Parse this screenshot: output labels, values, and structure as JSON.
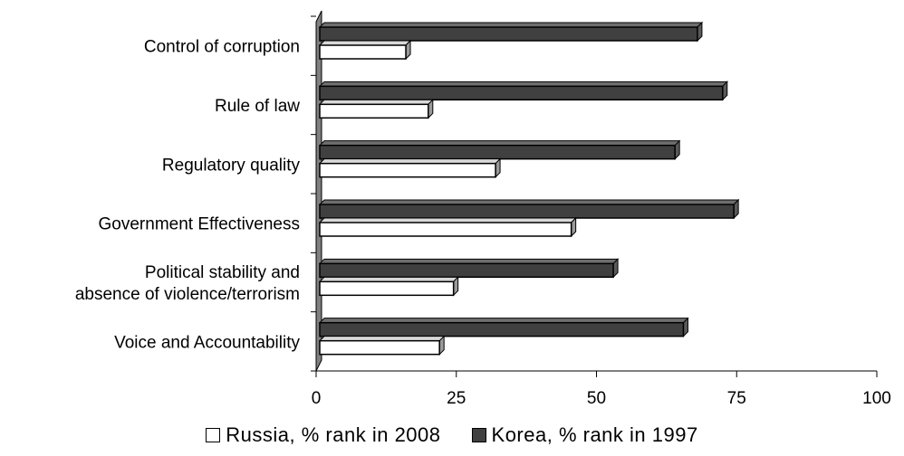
{
  "chart_data": {
    "type": "bar",
    "orientation": "horizontal",
    "categories": [
      "Control of corruption",
      "Rule of law",
      "Regulatory quality",
      "Government Effectiveness",
      "Political stability and absence of violence/terrorism",
      "Voice and Accountability"
    ],
    "series": [
      {
        "name": "Korea, % rank in 1997",
        "color": "#404040",
        "values": [
          68,
          72.5,
          64,
          74.5,
          53,
          65.5
        ]
      },
      {
        "name": "Russia, % rank in 2008",
        "color": "#ffffff",
        "values": [
          16,
          20,
          32,
          45.5,
          24.5,
          22
        ]
      }
    ],
    "xlim": [
      0,
      100
    ],
    "xticks": [
      0,
      25,
      50,
      75,
      100
    ],
    "xlabel": "",
    "ylabel": "",
    "grid": false,
    "legend_position": "bottom"
  }
}
